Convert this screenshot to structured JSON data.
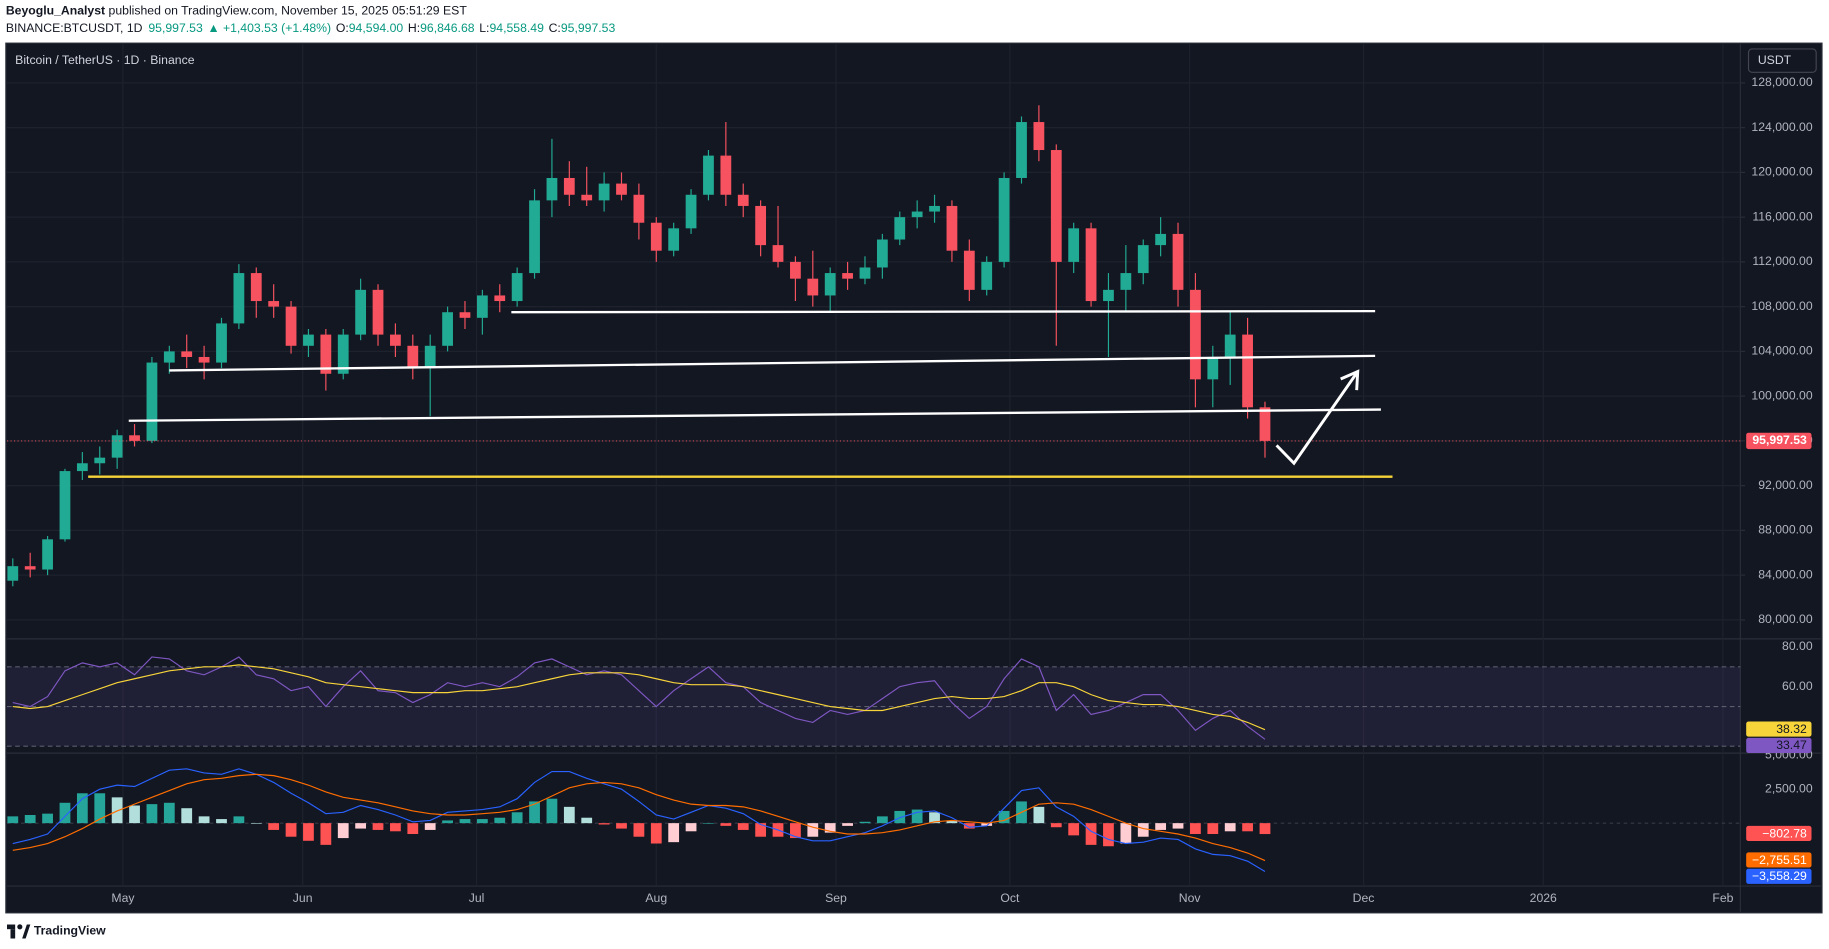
{
  "header": {
    "author": "Beyoglu_Analyst",
    "published": " published on TradingView.com, November 15, 2025 05:51:29 EST",
    "symbol": "BINANCE:BTCUSDT, 1D",
    "price": "95,997.53",
    "change": "▲ +1,403.53 (+1.48%)",
    "ohlc": [
      {
        "key": "O:",
        "value": "94,594.00"
      },
      {
        "key": "H:",
        "value": "96,846.68"
      },
      {
        "key": "L:",
        "value": "94,558.49"
      },
      {
        "key": "C:",
        "value": "95,997.53"
      }
    ]
  },
  "footer": "TradingView",
  "chart_data": {
    "type": "candlestick",
    "title": "Bitcoin / TetherUS · 1D · Binance",
    "currency": "USDT",
    "up_color": "#22ab94",
    "down_color": "#f7525f",
    "x": [
      "2025-04-12",
      "2025-04-15",
      "2025-04-18",
      "2025-04-21",
      "2025-04-24",
      "2025-04-27",
      "2025-04-30",
      "2025-05-03",
      "2025-05-06",
      "2025-05-09",
      "2025-05-12",
      "2025-05-15",
      "2025-05-18",
      "2025-05-21",
      "2025-05-24",
      "2025-05-27",
      "2025-05-30",
      "2025-06-02",
      "2025-06-05",
      "2025-06-08",
      "2025-06-11",
      "2025-06-14",
      "2025-06-17",
      "2025-06-20",
      "2025-06-23",
      "2025-06-26",
      "2025-06-29",
      "2025-07-02",
      "2025-07-05",
      "2025-07-08",
      "2025-07-11",
      "2025-07-14",
      "2025-07-17",
      "2025-07-20",
      "2025-07-23",
      "2025-07-26",
      "2025-07-29",
      "2025-08-01",
      "2025-08-04",
      "2025-08-07",
      "2025-08-10",
      "2025-08-13",
      "2025-08-16",
      "2025-08-19",
      "2025-08-22",
      "2025-08-25",
      "2025-08-28",
      "2025-08-31",
      "2025-09-03",
      "2025-09-06",
      "2025-09-09",
      "2025-09-12",
      "2025-09-15",
      "2025-09-18",
      "2025-09-21",
      "2025-09-24",
      "2025-09-27",
      "2025-09-30",
      "2025-10-03",
      "2025-10-06",
      "2025-10-09",
      "2025-10-12",
      "2025-10-15",
      "2025-10-18",
      "2025-10-21",
      "2025-10-24",
      "2025-10-27",
      "2025-10-30",
      "2025-11-02",
      "2025-11-05",
      "2025-11-08",
      "2025-11-11",
      "2025-11-14"
    ],
    "open": [
      83500,
      84800,
      84500,
      87200,
      93300,
      94000,
      94500,
      96500,
      96000,
      103000,
      104000,
      103500,
      103000,
      106500,
      111000,
      108500,
      108000,
      104500,
      105500,
      102000,
      105500,
      109500,
      105500,
      104500,
      102500,
      104500,
      107500,
      107000,
      109000,
      108500,
      111000,
      117500,
      119500,
      118000,
      117500,
      119000,
      118000,
      115500,
      113000,
      115000,
      118000,
      121500,
      118000,
      117000,
      113500,
      112000,
      110500,
      109000,
      111000,
      110500,
      111500,
      114000,
      116000,
      116500,
      117000,
      113000,
      109500,
      112000,
      119500,
      124500,
      122000,
      112000,
      115000,
      108500,
      109500,
      111000,
      113500,
      114500,
      109500,
      101500,
      103500,
      105500,
      99000
    ],
    "high": [
      85500,
      86000,
      87500,
      93500,
      95000,
      95500,
      97000,
      97500,
      103500,
      104500,
      105500,
      104500,
      107000,
      111800,
      111500,
      110000,
      108500,
      106000,
      106000,
      106000,
      110500,
      110000,
      106500,
      105500,
      105500,
      108000,
      108500,
      109500,
      110000,
      111500,
      118500,
      123000,
      121000,
      120500,
      120000,
      120000,
      119000,
      116000,
      115500,
      118500,
      122000,
      124500,
      119000,
      117500,
      117000,
      112500,
      113000,
      111500,
      112000,
      112500,
      114500,
      116500,
      117500,
      118000,
      117500,
      114000,
      112500,
      120000,
      125000,
      126000,
      122500,
      115500,
      115500,
      111000,
      113500,
      114000,
      116000,
      115500,
      111000,
      104500,
      107500,
      107000,
      99500
    ],
    "low": [
      83000,
      83800,
      84000,
      87000,
      92500,
      93000,
      93500,
      95500,
      95800,
      102000,
      102500,
      101500,
      102500,
      106000,
      107000,
      107000,
      103800,
      103500,
      100500,
      101500,
      105000,
      104500,
      103500,
      101500,
      98200,
      104000,
      106000,
      105500,
      107500,
      108000,
      110500,
      116000,
      117000,
      117000,
      116500,
      117500,
      114000,
      112000,
      112500,
      114500,
      117500,
      117000,
      116000,
      112500,
      111500,
      108500,
      108000,
      107500,
      109500,
      110000,
      110500,
      113500,
      115000,
      115500,
      112000,
      108500,
      109000,
      111500,
      119000,
      121000,
      104500,
      111000,
      108000,
      103500,
      107500,
      110000,
      112500,
      108000,
      99000,
      99000,
      101000,
      98000,
      94500
    ],
    "close": [
      84800,
      84500,
      87200,
      93300,
      94000,
      94500,
      96500,
      96000,
      103000,
      104000,
      103500,
      103000,
      106500,
      111000,
      108500,
      108000,
      104500,
      105500,
      102000,
      105500,
      109500,
      105500,
      104500,
      102500,
      104500,
      107500,
      107000,
      109000,
      108500,
      111000,
      117500,
      119500,
      118000,
      117500,
      119000,
      118000,
      115500,
      113000,
      115000,
      118000,
      121500,
      118000,
      117000,
      113500,
      112000,
      110500,
      109000,
      111000,
      110500,
      111500,
      114000,
      116000,
      116500,
      117000,
      113000,
      109500,
      112000,
      119500,
      124500,
      122000,
      112000,
      115000,
      108500,
      109500,
      111000,
      113500,
      114500,
      109500,
      101500,
      103500,
      105500,
      99000,
      95997.53
    ],
    "last_price_label": "95,997.53",
    "xlim": [
      "2025-04-11",
      "2026-02-04"
    ],
    "xticks": [
      {
        "value": "2025-05-01",
        "label": "May"
      },
      {
        "value": "2025-06-01",
        "label": "Jun"
      },
      {
        "value": "2025-07-01",
        "label": "Jul"
      },
      {
        "value": "2025-08-01",
        "label": "Aug"
      },
      {
        "value": "2025-09-01",
        "label": "Sep"
      },
      {
        "value": "2025-10-01",
        "label": "Oct"
      },
      {
        "value": "2025-11-01",
        "label": "Nov"
      },
      {
        "value": "2025-12-01",
        "label": "Dec"
      },
      {
        "value": "2026-01-01",
        "label": "2026"
      },
      {
        "value": "2026-02-01",
        "label": "Feb"
      }
    ],
    "ylim": [
      78300,
      131450
    ],
    "yticks": [
      {
        "value": 80000,
        "label": "80,000.00"
      },
      {
        "value": 84000,
        "label": "84,000.00"
      },
      {
        "value": 88000,
        "label": "88,000.00"
      },
      {
        "value": 92000,
        "label": "92,000.00"
      },
      {
        "value": 96000,
        "label": "96,000.00"
      },
      {
        "value": 100000,
        "label": "100,000.00"
      },
      {
        "value": 104000,
        "label": "104,000.00"
      },
      {
        "value": 108000,
        "label": "108,000.00"
      },
      {
        "value": 112000,
        "label": "112,000.00"
      },
      {
        "value": 116000,
        "label": "116,000.00"
      },
      {
        "value": 120000,
        "label": "120,000.00"
      },
      {
        "value": 124000,
        "label": "124,000.00"
      },
      {
        "value": 128000,
        "label": "128,000.00"
      }
    ],
    "grid": true,
    "drawings": [
      {
        "color": "#ffffff",
        "arrow": false,
        "x": [
          "2025-07-07",
          "2025-12-03"
        ],
        "y": [
          107500,
          107600
        ]
      },
      {
        "color": "#ffffff",
        "arrow": false,
        "x": [
          "2025-05-09",
          "2025-12-03"
        ],
        "y": [
          102300,
          103600
        ]
      },
      {
        "color": "#ffffff",
        "arrow": false,
        "x": [
          "2025-05-02",
          "2025-12-04"
        ],
        "y": [
          97800,
          98800
        ]
      },
      {
        "color": "#f7d43a",
        "arrow": false,
        "x": [
          "2025-04-25",
          "2025-12-06"
        ],
        "y": [
          92800,
          92800
        ]
      },
      {
        "color": "#ffffff",
        "arrow": true,
        "x": [
          "2025-11-16",
          "2025-11-19",
          "2025-11-30"
        ],
        "y": [
          95600,
          94000,
          102200
        ]
      }
    ],
    "rsi": {
      "ylim": [
        26.5,
        84.1
      ],
      "yticks": [
        {
          "value": 60,
          "label": "60.00"
        },
        {
          "value": 80,
          "label": "80.00"
        }
      ],
      "bands": [
        30,
        50,
        70
      ],
      "band_color": "#7e57c2",
      "series": [
        {
          "color": "#7e57c2",
          "last_label": "33.47",
          "values": [
            52,
            50,
            55,
            68,
            72,
            70,
            72,
            66,
            75,
            74,
            68,
            66,
            70,
            75,
            66,
            64,
            58,
            60,
            50,
            60,
            68,
            58,
            57,
            52,
            56,
            62,
            60,
            62,
            60,
            65,
            72,
            74,
            70,
            66,
            68,
            66,
            58,
            50,
            58,
            64,
            70,
            62,
            60,
            52,
            48,
            44,
            42,
            48,
            46,
            48,
            54,
            60,
            62,
            63,
            52,
            44,
            50,
            64,
            74,
            70,
            48,
            56,
            46,
            48,
            52,
            56,
            56,
            48,
            38,
            44,
            48,
            40,
            33.47
          ]
        },
        {
          "color": "#f7d43a",
          "last_label": "38.32",
          "values": [
            50,
            49,
            50,
            53,
            56,
            59,
            62,
            64,
            66,
            68,
            69,
            70,
            70,
            71,
            70,
            69,
            67,
            65,
            62,
            61,
            60,
            59,
            58,
            57,
            57,
            57,
            58,
            58,
            59,
            60,
            62,
            64,
            66,
            67,
            67,
            67,
            66,
            64,
            62,
            61,
            61,
            61,
            60,
            58,
            56,
            54,
            52,
            50,
            49,
            48,
            48,
            50,
            52,
            54,
            55,
            54,
            54,
            55,
            58,
            62,
            62,
            60,
            56,
            53,
            52,
            51,
            51,
            50,
            48,
            46,
            45,
            42,
            38.32
          ]
        }
      ]
    },
    "macd": {
      "ylim": [
        -4633,
        5157
      ],
      "yticks": [
        {
          "value": 2500,
          "label": "2,500.00"
        },
        {
          "value": 5000,
          "label": "5,000.00"
        }
      ],
      "histogram": {
        "colors": [
          "#26a69a",
          "#b2dfdb",
          "#ff5252",
          "#ffcdd2"
        ],
        "last_label": "−802.78",
        "values": [
          500,
          600,
          700,
          1500,
          2200,
          2200,
          1900,
          1300,
          1400,
          1500,
          1100,
          500,
          300,
          500,
          0,
          -500,
          -1000,
          -1300,
          -1600,
          -1100,
          -400,
          -500,
          -600,
          -800,
          -500,
          200,
          300,
          300,
          400,
          800,
          1600,
          1800,
          1200,
          400,
          -100,
          -400,
          -1000,
          -1500,
          -1400,
          -600,
          0,
          -200,
          -500,
          -1000,
          -1000,
          -1100,
          -1000,
          -700,
          -200,
          100,
          500,
          900,
          1000,
          800,
          200,
          -400,
          -200,
          900,
          1600,
          1200,
          -300,
          -900,
          -1600,
          -1700,
          -1500,
          -1000,
          -500,
          -400,
          -800,
          -800,
          -600,
          -600,
          -802.78
        ]
      },
      "series": [
        {
          "color": "#2962ff",
          "last_label": "−3,558.29",
          "values": [
            -1500,
            -1200,
            -800,
            500,
            1800,
            2500,
            2800,
            2700,
            3300,
            3900,
            4000,
            3700,
            3600,
            4000,
            3600,
            3000,
            2200,
            1500,
            700,
            800,
            1300,
            1000,
            600,
            100,
            200,
            800,
            900,
            1000,
            1200,
            1800,
            3000,
            3800,
            3800,
            3300,
            2900,
            2500,
            1600,
            600,
            300,
            800,
            1300,
            1100,
            700,
            -100,
            -500,
            -1000,
            -1300,
            -1300,
            -1000,
            -700,
            -200,
            400,
            800,
            900,
            400,
            -300,
            -200,
            1100,
            2400,
            2600,
            1200,
            500,
            -600,
            -1200,
            -1500,
            -1400,
            -1100,
            -1200,
            -1900,
            -2300,
            -2400,
            -2800,
            -3558.29
          ]
        },
        {
          "color": "#ff6d00",
          "last_label": "−2,755.51",
          "values": [
            -2000,
            -1800,
            -1500,
            -1000,
            -400,
            300,
            900,
            1400,
            1900,
            2400,
            2900,
            3200,
            3300,
            3500,
            3600,
            3500,
            3200,
            2800,
            2300,
            1900,
            1700,
            1500,
            1200,
            900,
            700,
            600,
            600,
            700,
            800,
            1000,
            1400,
            2000,
            2600,
            2900,
            3000,
            2900,
            2600,
            2100,
            1700,
            1400,
            1300,
            1300,
            1200,
            900,
            500,
            100,
            -300,
            -600,
            -800,
            -800,
            -700,
            -500,
            -200,
            100,
            200,
            100,
            0,
            200,
            800,
            1400,
            1500,
            1400,
            1000,
            500,
            0,
            -400,
            -600,
            -800,
            -1100,
            -1500,
            -1800,
            -2200,
            -2755.51
          ]
        }
      ]
    }
  }
}
